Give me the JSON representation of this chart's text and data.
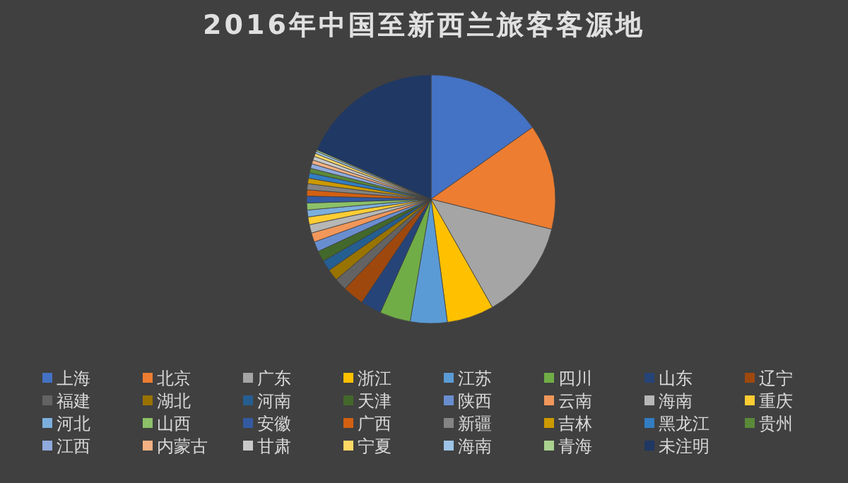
{
  "chart_data": {
    "type": "pie",
    "title": "2016年中国至新西兰旅客客源地",
    "legend": "bottom",
    "categories": [
      "上海",
      "北京",
      "广东",
      "浙江",
      "江苏",
      "四川",
      "山东",
      "辽宁",
      "福建",
      "湖北",
      "河南",
      "天津",
      "陕西",
      "云南",
      "海南",
      "重庆",
      "河北",
      "山西",
      "安徽",
      "广西",
      "新疆",
      "吉林",
      "黑龙江",
      "贵州",
      "江西",
      "内蒙古",
      "甘肃",
      "宁夏",
      "海南",
      "青海",
      "未注明"
    ],
    "values": [
      15.2,
      13.7,
      12.9,
      6.1,
      4.8,
      4.0,
      2.7,
      2.8,
      1.6,
      1.5,
      1.4,
      1.4,
      1.3,
      1.2,
      1.1,
      1.0,
      0.9,
      0.9,
      0.9,
      0.8,
      0.8,
      0.7,
      0.7,
      0.6,
      0.6,
      0.5,
      0.5,
      0.4,
      0.3,
      0.2,
      18.5
    ],
    "colors": [
      "#4472c4",
      "#ed7d31",
      "#a5a5a5",
      "#ffc000",
      "#5b9bd5",
      "#70ad47",
      "#264478",
      "#9e480e",
      "#636363",
      "#997300",
      "#255e91",
      "#43682b",
      "#698ed0",
      "#f1975a",
      "#b7b7b7",
      "#ffcd33",
      "#7cafdd",
      "#8cc168",
      "#335aa1",
      "#d26012",
      "#848484",
      "#cc9a00",
      "#327dc2",
      "#5a8a39",
      "#8faadc",
      "#f4b183",
      "#c9c9c9",
      "#ffd966",
      "#9dc3e6",
      "#a9d18e",
      "#1f3864"
    ]
  }
}
